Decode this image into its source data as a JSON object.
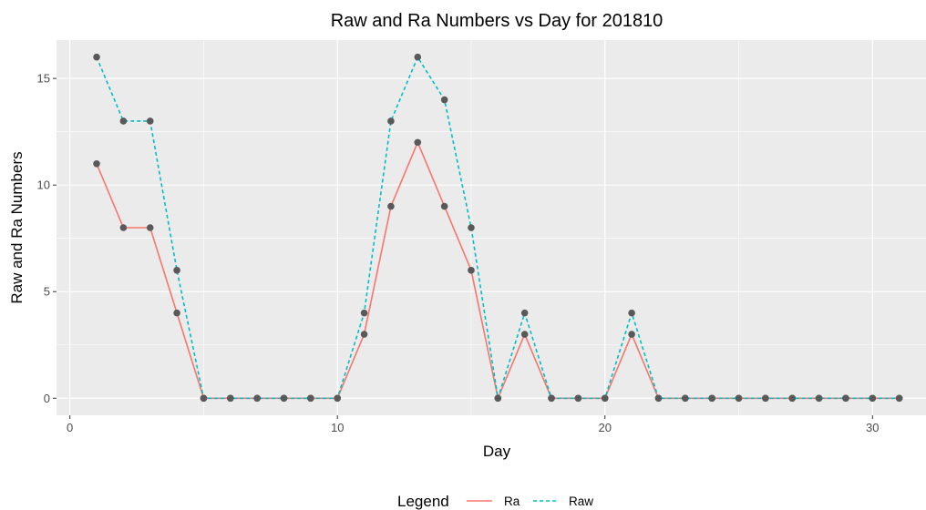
{
  "chart_data": {
    "type": "line",
    "title": "Raw and Ra Numbers vs Day for 201810",
    "xlabel": "Day",
    "ylabel": "Raw and Ra Numbers",
    "xlim": [
      -0.5,
      32
    ],
    "ylim": [
      -0.8,
      16.8
    ],
    "x_ticks": [
      0,
      10,
      20,
      30
    ],
    "y_ticks": [
      0,
      5,
      10,
      15
    ],
    "grid": true,
    "legend": {
      "title": "Legend",
      "placement": "bottom",
      "entries": [
        "Ra",
        "Raw"
      ]
    },
    "x": [
      1,
      2,
      3,
      4,
      5,
      6,
      7,
      8,
      9,
      10,
      11,
      12,
      13,
      14,
      15,
      16,
      17,
      18,
      19,
      20,
      21,
      22,
      23,
      24,
      25,
      26,
      27,
      28,
      29,
      30,
      31
    ],
    "series": [
      {
        "name": "Ra",
        "color": "#F8766D",
        "line_style": "solid",
        "values": [
          11,
          8,
          8,
          4,
          0,
          0,
          0,
          0,
          0,
          0,
          3,
          9,
          12,
          9,
          6,
          0,
          3,
          0,
          0,
          0,
          3,
          0,
          0,
          0,
          0,
          0,
          0,
          0,
          0,
          0,
          0
        ]
      },
      {
        "name": "Raw",
        "color": "#00BFC4",
        "line_style": "dashed",
        "values": [
          16,
          13,
          13,
          6,
          0,
          0,
          0,
          0,
          0,
          0,
          4,
          13,
          16,
          14,
          8,
          0,
          4,
          0,
          0,
          0,
          4,
          0,
          0,
          0,
          0,
          0,
          0,
          0,
          0,
          0,
          0
        ]
      }
    ],
    "point_color": "#595959"
  }
}
